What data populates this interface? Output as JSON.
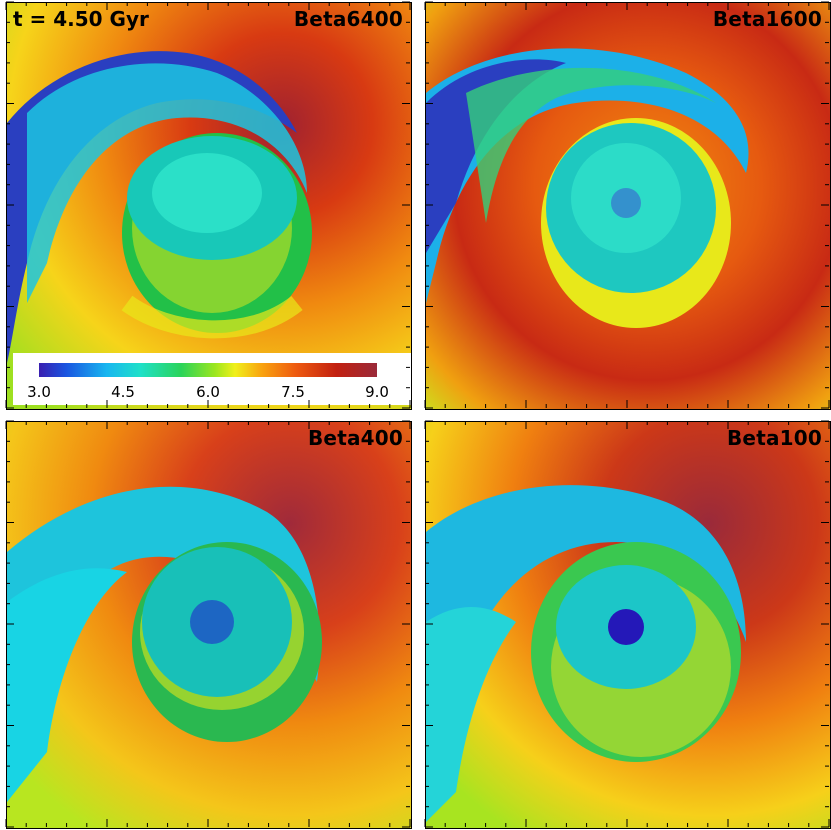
{
  "time_label": "t = 4.50 Gyr",
  "panels": [
    {
      "label": "Beta6400"
    },
    {
      "label": "Beta1600"
    },
    {
      "label": "Beta400"
    },
    {
      "label": "Beta100"
    }
  ],
  "colorbar": {
    "ticks": [
      "3.0",
      "4.5",
      "6.0",
      "7.5",
      "9.0"
    ],
    "colors": [
      "#3a1fb0",
      "#18b6f0",
      "#2ad45a",
      "#f0f01a",
      "#ee5a10",
      "#9a2a3a"
    ]
  }
}
